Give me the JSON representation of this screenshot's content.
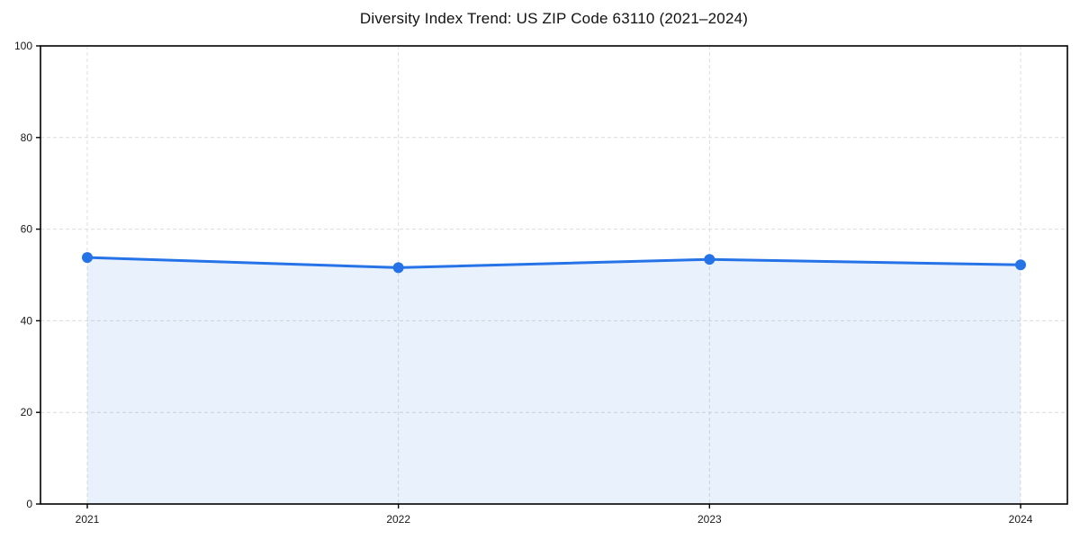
{
  "chart_data": {
    "type": "line",
    "title": "Diversity Index Trend: US ZIP Code 63110 (2021–2024)",
    "x": [
      "2021",
      "2022",
      "2023",
      "2024"
    ],
    "series": [
      {
        "name": "Diversity Index",
        "values": [
          53.8,
          51.6,
          53.4,
          52.2
        ]
      }
    ],
    "xlabel": "",
    "ylabel": "",
    "ylim": [
      0,
      100
    ],
    "yticks": [
      0,
      20,
      40,
      60,
      80,
      100
    ],
    "grid": "on",
    "grid_style": "dashed",
    "legend": "none",
    "area_fill": true,
    "colors": {
      "line": "#2673e8",
      "marker": "#2673e8",
      "area": "rgba(38, 115, 232, 0.10)",
      "gridline": "#dcdcdc",
      "axis": "#000000",
      "tick_text": "#1a1a1a",
      "background": "#ffffff"
    }
  }
}
